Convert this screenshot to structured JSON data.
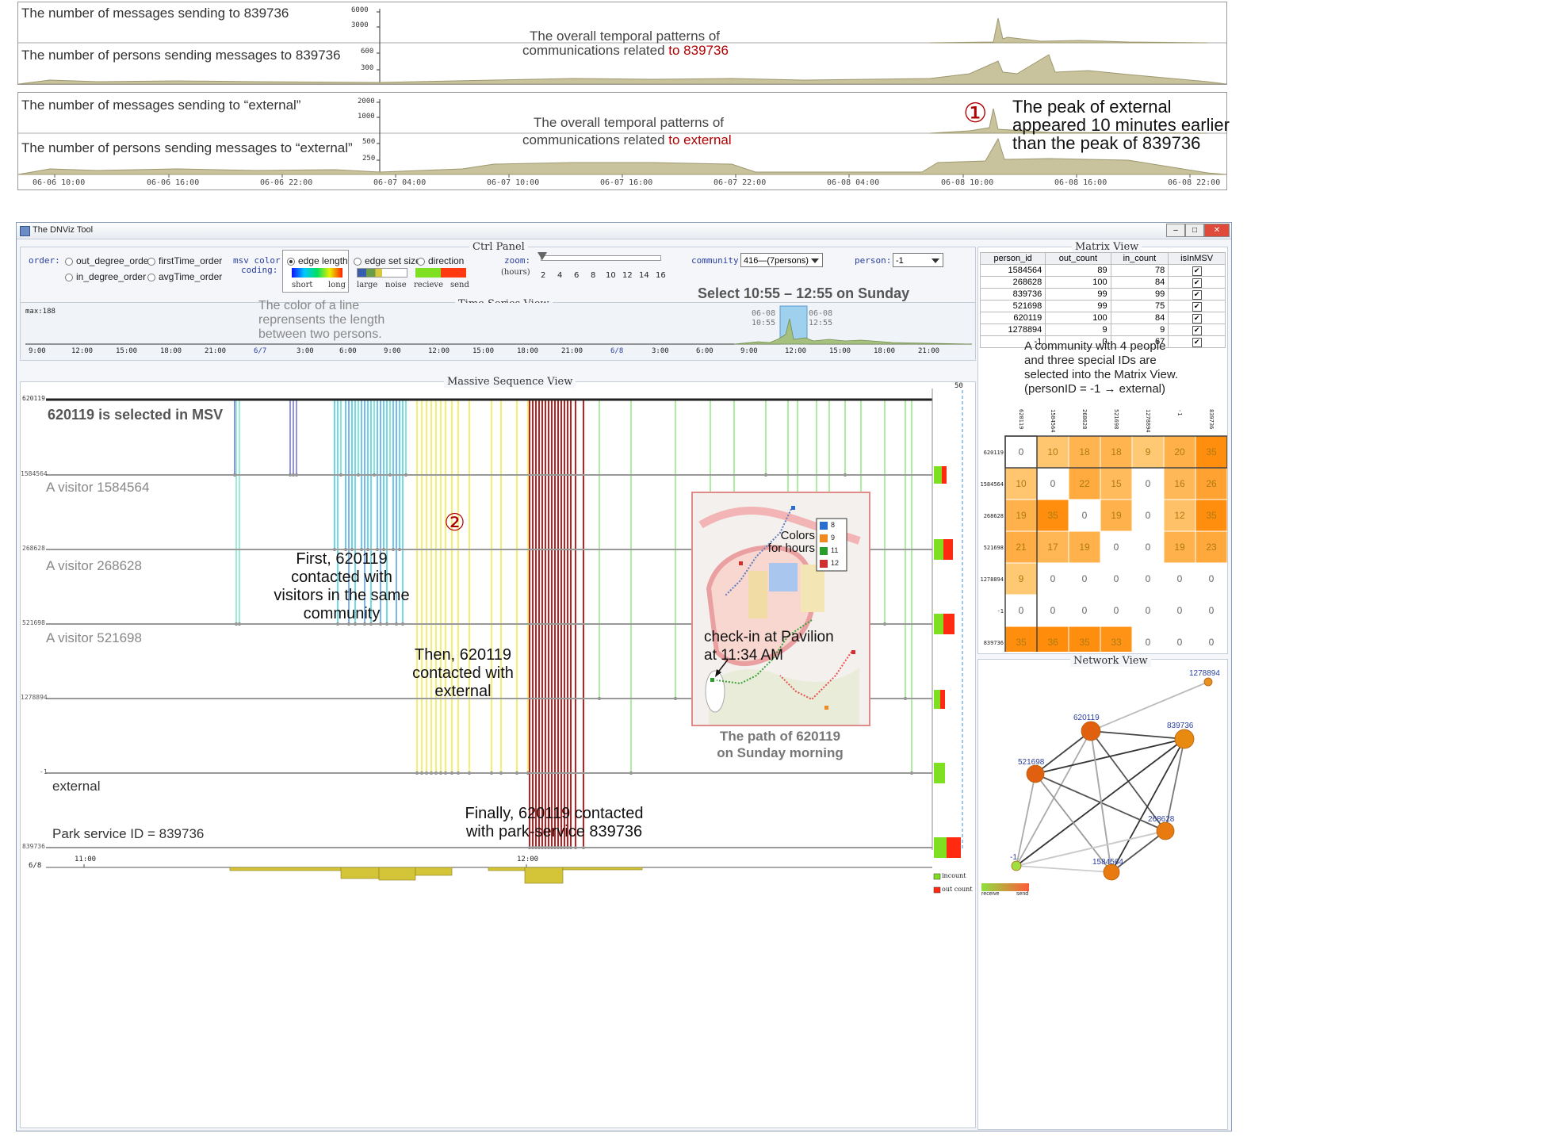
{
  "top_charts": {
    "box1": {
      "row1_label": "The number of messages sending to 839736",
      "row1_ticks": [
        "6000",
        "3000"
      ],
      "row2_label": "The number of persons sending messages to 839736",
      "row2_ticks": [
        "600",
        "300"
      ],
      "annotation_line1": "The overall temporal patterns of",
      "annotation_line2_prefix": "communications related ",
      "annotation_line2_red": "to 839736"
    },
    "box2": {
      "row1_label": "The number of messages sending to  “external”",
      "row1_ticks": [
        "2000",
        "1000"
      ],
      "row2_label": "The number of persons sending messages to   “external”",
      "row2_ticks": [
        "500",
        "250"
      ],
      "annotation_line1": "The overall temporal patterns of",
      "annotation_line2_prefix": "communications related ",
      "annotation_line2_red": "to external",
      "marker": "①",
      "peak_note": [
        "The peak of external",
        "appeared 10 minutes earlier",
        "than the peak of 839736"
      ]
    },
    "x_ticks": [
      "06-06 10:00",
      "06-06 16:00",
      "06-06 22:00",
      "06-07 04:00",
      "06-07 10:00",
      "06-07 16:00",
      "06-07 22:00",
      "06-08 04:00",
      "06-08 10:00",
      "06-08 16:00",
      "06-08 22:00"
    ]
  },
  "window": {
    "title": "The DNViz Tool",
    "buttons": [
      "–",
      "□",
      "✕"
    ]
  },
  "ctrl_panel": {
    "title": "Ctrl Panel",
    "order_label": "order:",
    "order_options": [
      "out_degree_order",
      "firstTime_order",
      "in_degree_order",
      "avgTime_order"
    ],
    "msv_label": "msv color",
    "coding_label": "coding:",
    "coding_options": [
      "edge length",
      "edge set size",
      "direction"
    ],
    "length_legend": [
      "short",
      "long"
    ],
    "size_legend": [
      "large",
      "noise"
    ],
    "direction_legend": [
      "recieve",
      "send"
    ],
    "zoom_label": "zoom:",
    "zoom_unit": "(hours)",
    "zoom_ticks": [
      "2",
      "4",
      "6",
      "8",
      "10",
      "12",
      "14",
      "16"
    ],
    "community_label": "community:",
    "community_value": "416—(7persons)",
    "person_label": "person:",
    "person_value": "-1"
  },
  "time_series_view": {
    "title": "Time Series View",
    "max_label": "max:188",
    "note": [
      "The color of a line",
      "reprensents the length",
      "between two persons."
    ],
    "selection_label": "Select 10:55 – 12:55 on Sunday",
    "sel_start": [
      "06-08",
      "10:55"
    ],
    "sel_end": [
      "06-08",
      "12:55"
    ],
    "x_ticks": [
      "9:00",
      "12:00",
      "15:00",
      "18:00",
      "21:00",
      "6/7",
      "3:00",
      "6:00",
      "9:00",
      "12:00",
      "15:00",
      "18:00",
      "21:00",
      "6/8",
      "3:00",
      "6:00",
      "9:00",
      "12:00",
      "15:00",
      "18:00",
      "21:00"
    ]
  },
  "msv": {
    "title": "Massive Sequence View",
    "max_label": "50",
    "rows": [
      {
        "id": "620119",
        "note": "620119 is selected in MSV"
      },
      {
        "id": "1584564",
        "note": "A visitor 1584564"
      },
      {
        "id": "268628",
        "note": "A visitor 268628"
      },
      {
        "id": "521698",
        "note": "A visitor 521698"
      },
      {
        "id": "1278894",
        "note": ""
      },
      {
        "id": "-1",
        "note": "external"
      },
      {
        "id": "839736",
        "note": "Park service ID = 839736"
      }
    ],
    "axis_date": "6/8",
    "axis_ticks": [
      "11:00",
      "12:00"
    ],
    "marker": "②",
    "ann_first": [
      "First, 620119",
      "contacted with",
      "visitors in the same",
      "community"
    ],
    "ann_then": [
      "Then, 620119",
      "contacted with",
      "external"
    ],
    "ann_finally": [
      "Finally, 620119 contacted",
      "with park-service 839736"
    ],
    "legend": [
      "incount",
      "out count"
    ],
    "map": {
      "legend_title": [
        "Colors",
        "for hours"
      ],
      "legend_hours": [
        "8",
        "9",
        "11",
        "12"
      ],
      "checkin": [
        "check-in at Pavilion",
        "at 11:34 AM"
      ],
      "caption": [
        "The path of 620119",
        "on Sunday morning"
      ]
    }
  },
  "matrix_view": {
    "title": "Matrix View",
    "columns": [
      "person_id",
      "out_count",
      "in_count",
      "isInMSV"
    ],
    "rows": [
      [
        "1584564",
        "89",
        "78"
      ],
      [
        "268628",
        "100",
        "84"
      ],
      [
        "839736",
        "99",
        "99"
      ],
      [
        "521698",
        "99",
        "75"
      ],
      [
        "620119",
        "100",
        "84"
      ],
      [
        "1278894",
        "9",
        "9"
      ],
      [
        "-1",
        "0",
        "67"
      ]
    ],
    "note": [
      "A community with 4 people",
      "and three special IDs are",
      "selected into the Matrix View.",
      "(personID  = -1 → external)"
    ],
    "ids": [
      "620119",
      "1584564",
      "268628",
      "521698",
      "1278894",
      "-1",
      "839736"
    ],
    "values": [
      [
        "0",
        "10",
        "18",
        "18",
        "9",
        "20",
        "35"
      ],
      [
        "10",
        "0",
        "22",
        "15",
        "0",
        "16",
        "26"
      ],
      [
        "19",
        "35",
        "0",
        "19",
        "0",
        "12",
        "35"
      ],
      [
        "21",
        "17",
        "19",
        "0",
        "0",
        "19",
        "23"
      ],
      [
        "9",
        "0",
        "0",
        "0",
        "0",
        "0",
        "0"
      ],
      [
        "0",
        "0",
        "0",
        "0",
        "0",
        "0",
        "0"
      ],
      [
        "35",
        "36",
        "35",
        "33",
        "0",
        "0",
        "0"
      ]
    ]
  },
  "network_view": {
    "title": "Network View",
    "nodes": [
      "1278894",
      "620119",
      "839736",
      "521698",
      "268628",
      "-1",
      "1584564"
    ],
    "legend": [
      "receive",
      "send"
    ]
  }
}
